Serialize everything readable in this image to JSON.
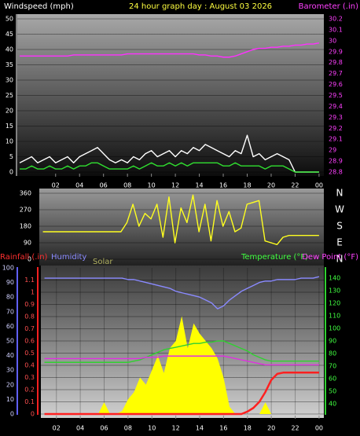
{
  "chart_data": [
    {
      "type": "line",
      "title": "24 hour graph day : August 03 2026",
      "ylabel": "Windspeed (mph)",
      "y2label": "Barometer (.in)",
      "x": [
        -1,
        -0.5,
        0,
        0.5,
        1,
        1.5,
        2,
        2.5,
        3,
        3.5,
        4,
        4.5,
        5,
        5.5,
        6,
        6.5,
        7,
        7.5,
        8,
        8.5,
        9,
        9.5,
        10,
        10.5,
        11,
        11.5,
        12,
        12.5,
        13,
        13.5,
        14,
        14.5,
        15,
        15.5,
        16,
        16.5,
        17,
        17.5,
        18,
        18.5,
        19,
        19.5,
        20,
        20.5,
        21,
        21.5,
        22,
        22.5,
        23,
        23.5,
        24
      ],
      "xlim": [
        -1.2,
        24.4
      ],
      "xticks": [
        {
          "value": 2,
          "label": "02"
        },
        {
          "value": 4,
          "label": "04"
        },
        {
          "value": 6,
          "label": "06"
        },
        {
          "value": 8,
          "label": "08"
        },
        10,
        12,
        14,
        16,
        18,
        20,
        22,
        {
          "value": 24,
          "label": "00"
        }
      ],
      "ylim": [
        0,
        50
      ],
      "yticks": [
        0,
        5,
        10,
        15,
        20,
        25,
        30,
        35,
        40,
        45,
        50
      ],
      "y2lim": [
        28.8,
        30.2
      ],
      "y2ticks": [
        28.8,
        28.9,
        29,
        29.1,
        29.2,
        29.3,
        29.4,
        29.5,
        29.6,
        29.7,
        29.8,
        29.9,
        30,
        30.1,
        30.2
      ],
      "grid": true,
      "series": [
        {
          "color": "#ffffff",
          "values": [
            3,
            4,
            5,
            3,
            4,
            5,
            3,
            4,
            5,
            3,
            5,
            6,
            7,
            8,
            6,
            4,
            3,
            4,
            3,
            5,
            4,
            6,
            7,
            5,
            6,
            7,
            5,
            7,
            6,
            8,
            7,
            9,
            8,
            7,
            6,
            5,
            7,
            6,
            12,
            5,
            6,
            4,
            5,
            6,
            5,
            4,
            0,
            0,
            0,
            0,
            0
          ]
        },
        {
          "color": "#30e030",
          "values": [
            1,
            1,
            2,
            1,
            1,
            2,
            1,
            1,
            2,
            1,
            2,
            2,
            3,
            3,
            2,
            1,
            1,
            1,
            1,
            2,
            1,
            2,
            3,
            2,
            2,
            3,
            2,
            3,
            2,
            3,
            3,
            3,
            3,
            3,
            2,
            2,
            3,
            2,
            2,
            2,
            2,
            1,
            2,
            2,
            2,
            1,
            0,
            0,
            0,
            0,
            0
          ]
        },
        {
          "color": "#ff30ff",
          "axis": "y2",
          "values": [
            29.86,
            29.86,
            29.86,
            29.86,
            29.86,
            29.86,
            29.86,
            29.86,
            29.86,
            29.87,
            29.87,
            29.87,
            29.87,
            29.87,
            29.87,
            29.87,
            29.87,
            29.87,
            29.88,
            29.88,
            29.88,
            29.88,
            29.88,
            29.88,
            29.88,
            29.88,
            29.88,
            29.88,
            29.88,
            29.88,
            29.87,
            29.87,
            29.86,
            29.86,
            29.85,
            29.85,
            29.86,
            29.88,
            29.9,
            29.92,
            29.93,
            29.93,
            29.94,
            29.94,
            29.95,
            29.95,
            29.96,
            29.96,
            29.97,
            29.97,
            29.98
          ]
        }
      ]
    },
    {
      "type": "line",
      "x": [
        1,
        1.5,
        2,
        2.5,
        3,
        3.5,
        4,
        4.5,
        5,
        5.5,
        6,
        6.5,
        7,
        7.5,
        8,
        8.5,
        9,
        9.5,
        10,
        10.5,
        11,
        11.5,
        12,
        12.5,
        13,
        13.5,
        14,
        14.5,
        15,
        15.5,
        16,
        16.5,
        17,
        17.5,
        18,
        18.5,
        19,
        19.5,
        20,
        20.5,
        21,
        21.5,
        22,
        22.5,
        23,
        23.5,
        24
      ],
      "xlim": [
        0.7,
        24.4
      ],
      "ylim": [
        0,
        360
      ],
      "yticks": [
        0,
        90,
        180,
        270,
        360
      ],
      "y2lim": [
        0,
        360
      ],
      "y2ticks": [
        {
          "value": 360,
          "label": "N"
        },
        {
          "value": 270,
          "label": "W"
        },
        {
          "value": 180,
          "label": "S"
        },
        {
          "value": 90,
          "label": "E"
        },
        {
          "value": 0,
          "label": "N"
        }
      ],
      "grid": true,
      "series": [
        {
          "color": "#ffff20",
          "values": [
            150,
            150,
            150,
            150,
            150,
            150,
            150,
            150,
            150,
            150,
            150,
            150,
            150,
            150,
            200,
            300,
            180,
            250,
            220,
            300,
            120,
            340,
            90,
            280,
            200,
            350,
            150,
            300,
            100,
            320,
            180,
            260,
            150,
            170,
            300,
            310,
            320,
            100,
            90,
            80,
            120,
            130,
            130,
            130,
            130,
            130,
            130
          ]
        }
      ]
    },
    {
      "type": "line",
      "x": [
        1,
        1.5,
        2,
        2.5,
        3,
        3.5,
        4,
        4.5,
        5,
        5.5,
        6,
        6.5,
        7,
        7.5,
        8,
        8.5,
        9,
        9.5,
        10,
        10.5,
        11,
        11.5,
        12,
        12.5,
        13,
        13.5,
        14,
        14.5,
        15,
        15.5,
        16,
        16.5,
        17,
        17.5,
        18,
        18.5,
        19,
        19.5,
        20,
        20.5,
        21,
        21.5,
        22,
        22.5,
        23,
        23.5,
        24
      ],
      "xlim": [
        0.7,
        24.4
      ],
      "xticks": [
        {
          "value": 2,
          "label": "02"
        },
        {
          "value": 4,
          "label": "04"
        },
        {
          "value": 6,
          "label": "06"
        },
        {
          "value": 8,
          "label": "08"
        },
        10,
        12,
        14,
        16,
        18,
        20,
        22,
        {
          "value": 24,
          "label": "00"
        }
      ],
      "ylim": [
        0,
        1.2
      ],
      "yticks": [
        0,
        0.1,
        0.2,
        0.3,
        0.4,
        0.5,
        0.6,
        0.7,
        0.8,
        0.9,
        1,
        1.1
      ],
      "y2lim": [
        0,
        100
      ],
      "y2ticks": [
        0,
        10,
        20,
        30,
        40,
        50,
        60,
        70,
        80,
        90,
        100
      ],
      "y3lim": [
        32,
        148
      ],
      "y3ticks": [
        40,
        50,
        60,
        70,
        80,
        90,
        100,
        110,
        120,
        130,
        140
      ],
      "grid": true,
      "xgrid": true,
      "series": [
        {
          "name": "Rainfall (.in)",
          "color": "#ff2020",
          "values": [
            0,
            0,
            0,
            0,
            0,
            0,
            0,
            0,
            0,
            0,
            0,
            0,
            0,
            0,
            0,
            0,
            0,
            0,
            0,
            0,
            0,
            0,
            0,
            0,
            0,
            0,
            0,
            0,
            0,
            0,
            0,
            0,
            0,
            0,
            0.02,
            0.05,
            0.1,
            0.18,
            0.28,
            0.33,
            0.34,
            0.34,
            0.34,
            0.34,
            0.34,
            0.34,
            0.34
          ]
        },
        {
          "name": "Humidity",
          "color": "#8a8aff",
          "axis": "y2",
          "values": [
            93,
            93,
            93,
            93,
            93,
            93,
            93,
            93,
            93,
            93,
            93,
            93,
            93,
            93,
            92,
            92,
            91,
            90,
            89,
            88,
            87,
            86,
            84,
            83,
            82,
            81,
            80,
            78,
            76,
            72,
            74,
            78,
            81,
            84,
            86,
            88,
            90,
            91,
            91,
            92,
            92,
            92,
            92,
            93,
            93,
            93,
            94
          ]
        },
        {
          "name": "Solar",
          "color": "#ffff00",
          "axis": "y2",
          "fill": true,
          "values": [
            0,
            0,
            0,
            0,
            0,
            0,
            0,
            0,
            0,
            0,
            8,
            0,
            0,
            2,
            10,
            15,
            25,
            20,
            30,
            40,
            28,
            45,
            50,
            67,
            45,
            62,
            55,
            50,
            45,
            38,
            25,
            5,
            0,
            0,
            0,
            0,
            0,
            8,
            0,
            0,
            0,
            0,
            0,
            0,
            0,
            0,
            0
          ]
        },
        {
          "name": "Temperature (°F)",
          "color": "#30d030",
          "axis": "y3",
          "values": [
            73,
            73,
            73,
            73,
            73,
            73,
            73,
            73,
            73,
            73,
            73,
            73,
            73,
            73,
            73,
            74,
            75,
            77,
            79,
            81,
            83,
            84,
            85,
            86,
            87,
            88,
            88,
            89,
            89,
            90,
            90,
            88,
            86,
            84,
            82,
            79,
            77,
            75,
            74,
            74,
            74,
            74,
            74,
            74,
            74,
            74,
            74
          ]
        },
        {
          "name": "Dew Point (°F)",
          "color": "#e030e0",
          "axis": "y3",
          "values": [
            76,
            76,
            76,
            76,
            76,
            76,
            76,
            76,
            76,
            76,
            76,
            76,
            76,
            76,
            76,
            76,
            76,
            77,
            77,
            77,
            78,
            78,
            78,
            78,
            78,
            78,
            78,
            78,
            78,
            78,
            78,
            77,
            76,
            75,
            74,
            73,
            72,
            71,
            71,
            71,
            71,
            71,
            71,
            71,
            71,
            71,
            71
          ]
        }
      ]
    }
  ]
}
